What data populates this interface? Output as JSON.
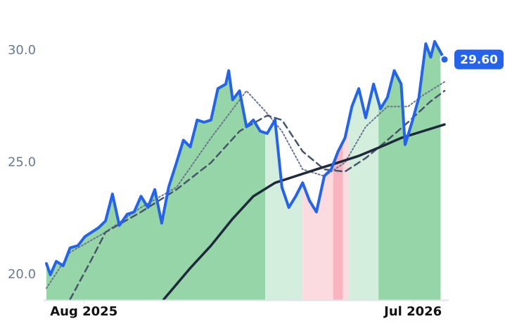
{
  "chart_data": {
    "type": "line",
    "xlim": [
      -38,
      366
    ],
    "xticks": [
      {
        "value": 0,
        "label": "Aug 2025"
      },
      {
        "value": 334,
        "label": "Jul 2026"
      }
    ],
    "ylim": [
      18.875,
      32.25
    ],
    "yticks": [
      {
        "value": 20,
        "label": "20.0"
      },
      {
        "value": 25,
        "label": "25.0"
      },
      {
        "value": 30,
        "label": "30.0"
      }
    ],
    "grid": false,
    "x": [
      -38,
      -34,
      -28,
      -21,
      -14,
      -6,
      1,
      8,
      15,
      22,
      29,
      36,
      44,
      51,
      58,
      65,
      72,
      79,
      86,
      94,
      101,
      108,
      115,
      122,
      129,
      136,
      144,
      147,
      151,
      158,
      165,
      172,
      179,
      186,
      194,
      201,
      208,
      215,
      222,
      229,
      236,
      244,
      251,
      258,
      265,
      272,
      279,
      286,
      294,
      301,
      308,
      315,
      322,
      326,
      333,
      340,
      347,
      352,
      356,
      361,
      366
    ],
    "series": [
      {
        "color": "#2563eb",
        "style": "solid",
        "width": 4,
        "values": [
          20.5,
          20.0,
          20.6,
          20.4,
          21.2,
          21.3,
          21.7,
          21.9,
          22.1,
          22.4,
          23.6,
          22.2,
          22.7,
          22.8,
          23.5,
          23.0,
          23.8,
          22.3,
          23.9,
          25.0,
          26.0,
          25.7,
          26.9,
          26.8,
          26.9,
          28.3,
          28.5,
          29.1,
          27.8,
          28.2,
          26.6,
          26.9,
          26.4,
          26.3,
          26.9,
          23.9,
          23.0,
          23.5,
          24.1,
          23.3,
          22.8,
          24.4,
          24.7,
          25.5,
          26.1,
          27.5,
          28.3,
          27.0,
          28.5,
          27.4,
          27.9,
          29.1,
          28.5,
          25.8,
          26.8,
          27.9,
          30.3,
          29.7,
          30.4,
          30.0,
          29.6
        ],
        "value_labels": [
          null,
          null,
          null,
          null,
          null,
          null,
          null,
          null,
          null,
          null,
          null,
          null,
          null,
          null,
          null,
          null,
          null,
          null,
          null,
          null,
          null,
          null,
          null,
          null,
          null,
          null,
          null,
          null,
          null,
          null,
          null,
          null,
          null,
          null,
          null,
          null,
          null,
          null,
          null,
          null,
          null,
          null,
          null,
          null,
          null,
          null,
          null,
          null,
          null,
          null,
          null,
          null,
          null,
          null,
          null,
          null,
          null,
          null,
          null,
          null,
          "29.60"
        ]
      },
      {
        "color": "#6b7790",
        "style": "dotted",
        "width": 2,
        "x": [
          -38,
          -14,
          22,
          58,
          94,
          129,
          165,
          186,
          201,
          222,
          244,
          265,
          286,
          308,
          329,
          344,
          366
        ],
        "values": [
          19.4,
          21.0,
          21.9,
          23.0,
          23.9,
          26.1,
          28.2,
          27.2,
          26.4,
          24.7,
          24.4,
          25.0,
          26.6,
          27.5,
          27.5,
          28.0,
          28.6
        ]
      },
      {
        "color": "#475569",
        "style": "dashed",
        "width": 2.5,
        "x": [
          -14,
          8,
          22,
          58,
          94,
          129,
          158,
          186,
          201,
          222,
          244,
          265,
          286,
          308,
          329,
          351,
          366
        ],
        "values": [
          18.9,
          20.7,
          21.9,
          22.8,
          23.8,
          25.0,
          26.4,
          27.1,
          26.9,
          25.5,
          24.7,
          24.6,
          25.2,
          26.0,
          26.8,
          27.7,
          28.2
        ]
      },
      {
        "color": "#1e293b",
        "style": "solid",
        "width": 3.5,
        "x": [
          81,
          108,
          129,
          151,
          172,
          194,
          215,
          236,
          258,
          279,
          301,
          322,
          344,
          366
        ],
        "values": [
          18.9,
          20.3,
          21.3,
          22.5,
          23.5,
          24.1,
          24.4,
          24.7,
          25.0,
          25.3,
          25.7,
          26.1,
          26.4,
          26.7
        ]
      }
    ],
    "bands": [
      {
        "start": -38,
        "end": 184,
        "color": "#95d5a8"
      },
      {
        "start": 184,
        "end": 222,
        "color": "#d4eedd"
      },
      {
        "start": 222,
        "end": 253,
        "color": "#fcdbe0"
      },
      {
        "start": 253,
        "end": 263,
        "color": "#f8b4bf"
      },
      {
        "start": 263,
        "end": 269,
        "color": "#fcdbe0"
      },
      {
        "start": 269,
        "end": 299,
        "color": "#d4eedd"
      },
      {
        "start": 299,
        "end": 362,
        "color": "#95d5a8"
      }
    ]
  }
}
